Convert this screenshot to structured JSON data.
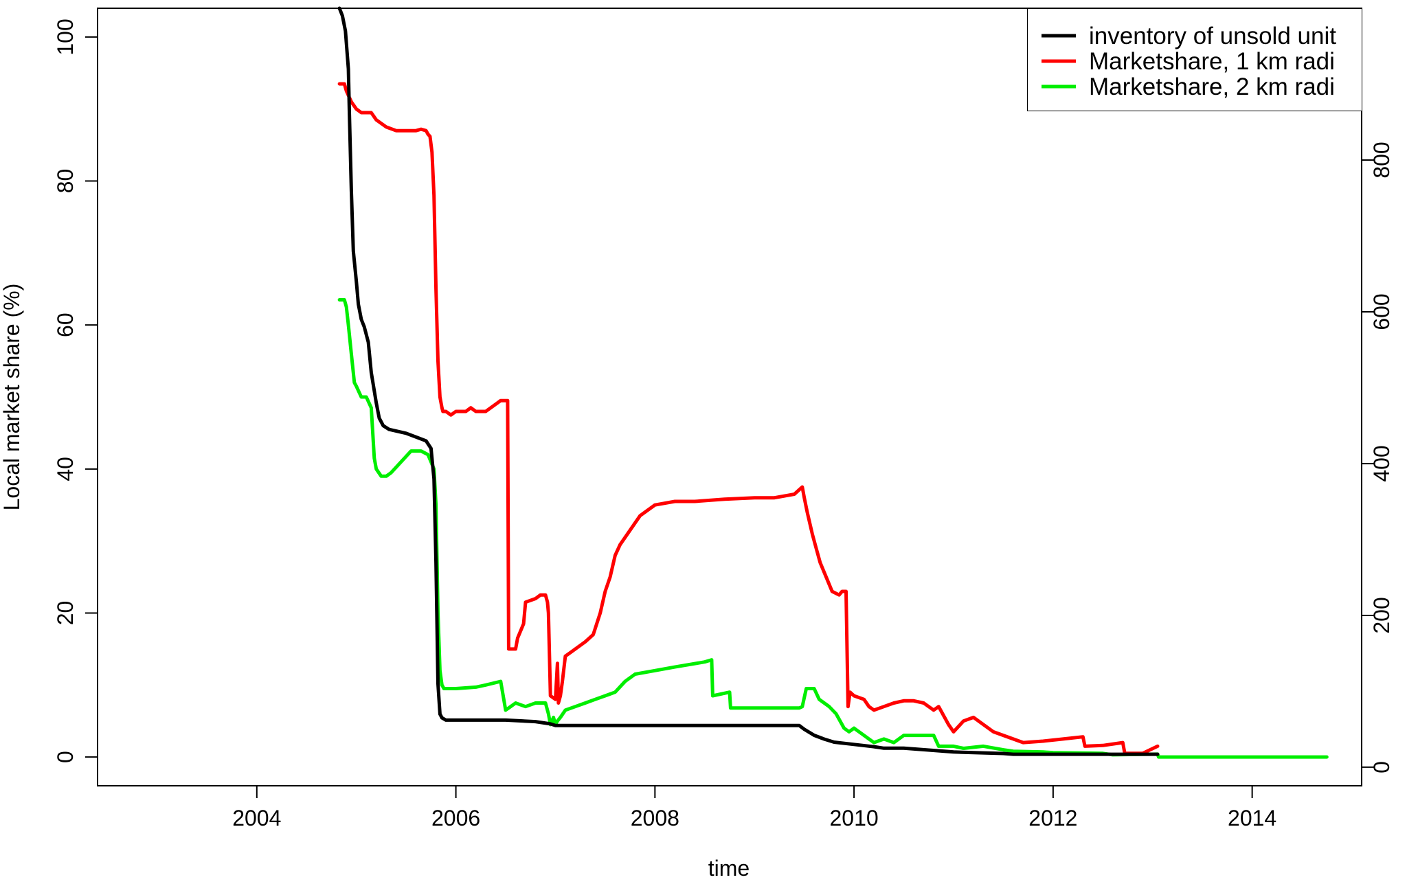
{
  "chart_data": {
    "type": "line",
    "title": "",
    "xlabel": "time",
    "ylabel": "Local market share (%)",
    "y2label": "",
    "xlim": [
      2002.4,
      2015.1
    ],
    "ylim": [
      -4,
      104
    ],
    "y2lim": [
      -24.5,
      1000
    ],
    "x_ticks": [
      2004,
      2006,
      2008,
      2010,
      2012,
      2014
    ],
    "y_ticks": [
      0,
      20,
      40,
      60,
      80,
      100
    ],
    "y2_ticks": [
      0,
      200,
      400,
      600,
      800
    ],
    "grid": false,
    "legend": {
      "position": "top-right",
      "entries": [
        {
          "label": "inventory of unsold unit",
          "color": "#000000"
        },
        {
          "label": "Marketshare, 1 km radi",
          "color": "#ff0000"
        },
        {
          "label": "Marketshare, 2 km radi",
          "color": "#00ee00"
        }
      ]
    },
    "series": [
      {
        "name": "inventory of unsold unit",
        "color": "#000000",
        "axis": "right",
        "x": [
          2004.83,
          2004.86,
          2004.89,
          2004.92,
          2004.93,
          2004.95,
          2004.97,
          2005.0,
          2005.02,
          2005.05,
          2005.08,
          2005.12,
          2005.15,
          2005.2,
          2005.23,
          2005.27,
          2005.33,
          2005.5,
          2005.7,
          2005.75,
          2005.78,
          2005.8,
          2005.82,
          2005.84,
          2005.86,
          2005.9,
          2006.0,
          2006.5,
          2006.8,
          2006.95,
          2007.0,
          2007.5,
          2008.0,
          2008.5,
          2009.0,
          2009.45,
          2009.5,
          2009.6,
          2009.7,
          2009.8,
          2010.0,
          2010.2,
          2010.3,
          2010.5,
          2011.0,
          2011.5,
          2011.6,
          2012.0,
          2013.05
        ],
        "y": [
          1000,
          990,
          970,
          920,
          860,
          760,
          680,
          640,
          610,
          590,
          580,
          560,
          520,
          480,
          460,
          450,
          445,
          440,
          430,
          420,
          380,
          270,
          110,
          70,
          65,
          62,
          62,
          62,
          60,
          57,
          55,
          55,
          55,
          55,
          55,
          55,
          50,
          42,
          37,
          33,
          30,
          27,
          25,
          25,
          20,
          18,
          17,
          17,
          17
        ]
      },
      {
        "name": "Marketshare, 1 km radi",
        "color": "#ff0000",
        "axis": "left",
        "x": [
          2004.83,
          2004.88,
          2004.9,
          2004.95,
          2005.0,
          2005.05,
          2005.15,
          2005.2,
          2005.3,
          2005.4,
          2005.6,
          2005.65,
          2005.7,
          2005.72,
          2005.74,
          2005.76,
          2005.78,
          2005.8,
          2005.82,
          2005.84,
          2005.86,
          2005.87,
          2005.9,
          2005.95,
          2006.0,
          2006.1,
          2006.15,
          2006.2,
          2006.3,
          2006.4,
          2006.45,
          2006.52,
          2006.53,
          2006.6,
          2006.62,
          2006.68,
          2006.7,
          2006.8,
          2006.85,
          2006.9,
          2006.92,
          2006.93,
          2006.95,
          2007.0,
          2007.02,
          2007.03,
          2007.05,
          2007.07,
          2007.1,
          2007.15,
          2007.2,
          2007.3,
          2007.38,
          2007.45,
          2007.5,
          2007.55,
          2007.6,
          2007.65,
          2007.75,
          2007.85,
          2008.0,
          2008.2,
          2008.4,
          2008.7,
          2009.0,
          2009.2,
          2009.4,
          2009.48,
          2009.5,
          2009.53,
          2009.58,
          2009.62,
          2009.66,
          2009.72,
          2009.78,
          2009.85,
          2009.88,
          2009.92,
          2009.94,
          2009.96,
          2010.0,
          2010.1,
          2010.15,
          2010.2,
          2010.3,
          2010.4,
          2010.5,
          2010.6,
          2010.7,
          2010.8,
          2010.85,
          2010.95,
          2011.0,
          2011.1,
          2011.2,
          2011.3,
          2011.4,
          2011.5,
          2011.6,
          2011.7,
          2011.9,
          2012.1,
          2012.3,
          2012.32,
          2012.5,
          2012.7,
          2012.72,
          2012.9,
          2013.05
        ],
        "y": [
          93.5,
          93.5,
          92.5,
          91,
          90,
          89.5,
          89.5,
          88.5,
          87.5,
          87,
          87,
          87.2,
          87,
          86.5,
          86.2,
          84,
          78,
          65,
          55,
          50,
          48.5,
          48,
          48,
          47.5,
          48,
          48,
          48.5,
          48,
          48,
          49,
          49.5,
          49.5,
          15,
          15,
          16.5,
          18.5,
          21.5,
          22,
          22.5,
          22.5,
          21.5,
          20,
          8.5,
          8,
          13,
          7.5,
          8.5,
          10.5,
          14,
          14.5,
          15,
          16,
          17,
          20,
          23,
          25,
          28,
          29.5,
          31.5,
          33.5,
          35,
          35.5,
          35.5,
          35.8,
          36,
          36,
          36.5,
          37.5,
          36,
          34,
          31,
          29,
          27,
          25,
          23,
          22.5,
          23,
          23,
          7,
          9,
          8.5,
          8,
          7,
          6.5,
          7,
          7.5,
          7.8,
          7.8,
          7.5,
          6.5,
          7,
          4.5,
          3.5,
          5,
          5.5,
          4.5,
          3.5,
          3,
          2.5,
          2,
          2.2,
          2.5,
          2.8,
          1.5,
          1.6,
          2,
          0.5,
          0.5,
          1.5
        ]
      },
      {
        "name": "Marketshare, 2 km radi",
        "color": "#00ee00",
        "axis": "left",
        "x": [
          2004.83,
          2004.88,
          2004.9,
          2004.92,
          2004.95,
          2004.98,
          2005.0,
          2005.05,
          2005.1,
          2005.15,
          2005.18,
          2005.2,
          2005.25,
          2005.3,
          2005.35,
          2005.45,
          2005.55,
          2005.65,
          2005.72,
          2005.78,
          2005.8,
          2005.82,
          2005.84,
          2005.86,
          2005.88,
          2005.95,
          2006.0,
          2006.2,
          2006.3,
          2006.45,
          2006.5,
          2006.55,
          2006.6,
          2006.7,
          2006.8,
          2006.9,
          2006.93,
          2006.95,
          2006.98,
          2007.0,
          2007.02,
          2007.05,
          2007.1,
          2007.2,
          2007.3,
          2007.4,
          2007.5,
          2007.6,
          2007.7,
          2007.8,
          2008.0,
          2008.2,
          2008.5,
          2008.57,
          2008.58,
          2008.75,
          2008.76,
          2009.0,
          2009.2,
          2009.45,
          2009.48,
          2009.52,
          2009.6,
          2009.65,
          2009.75,
          2009.82,
          2009.9,
          2009.95,
          2010.0,
          2010.1,
          2010.15,
          2010.2,
          2010.3,
          2010.4,
          2010.5,
          2010.8,
          2010.85,
          2011.0,
          2011.1,
          2011.3,
          2011.5,
          2011.6,
          2011.9,
          2012.0,
          2012.5,
          2012.6,
          2013.05,
          2013.06,
          2014.75
        ],
        "y": [
          63.5,
          63.5,
          62.5,
          60,
          56,
          52,
          51.5,
          50,
          50,
          48.5,
          41.5,
          40,
          39,
          39,
          39.5,
          41,
          42.5,
          42.5,
          42,
          40,
          35,
          20,
          12,
          10,
          9.5,
          9.5,
          9.5,
          9.7,
          10,
          10.5,
          6.5,
          7,
          7.5,
          7,
          7.5,
          7.5,
          6,
          4.5,
          5.5,
          4.5,
          5,
          5.5,
          6.5,
          7,
          7.5,
          8,
          8.5,
          9,
          10.5,
          11.5,
          12,
          12.5,
          13.2,
          13.5,
          8.5,
          9,
          6.8,
          6.8,
          6.8,
          6.8,
          7,
          9.5,
          9.5,
          8,
          7,
          6,
          4,
          3.5,
          4,
          3,
          2.5,
          2,
          2.5,
          2,
          3,
          3,
          1.5,
          1.5,
          1.2,
          1.5,
          1,
          0.8,
          0.7,
          0.6,
          0.5,
          0.3,
          0.4,
          0,
          0
        ]
      }
    ]
  }
}
